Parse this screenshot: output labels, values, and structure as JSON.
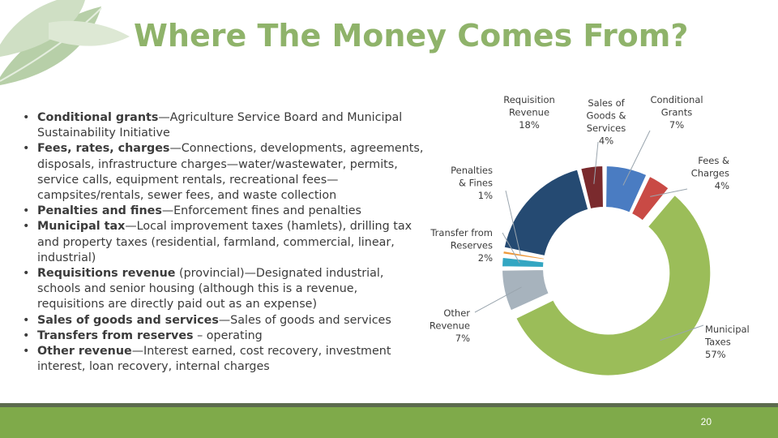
{
  "title": "Where The Money Comes From?",
  "bullets": [
    {
      "term": "Conditional grants",
      "sep": "—",
      "text": "Agriculture Service Board and Municipal Sustainability Initiative"
    },
    {
      "term": "Fees, rates, charges",
      "sep": "—",
      "text": "Connections, developments, agreements, disposals, infrastructure charges—water/wastewater, permits, service calls, equipment rentals, recreational fees—campsites/rentals, sewer fees, and waste collection"
    },
    {
      "term": "Penalties and fines",
      "sep": "—",
      "text": "Enforcement fines and penalties"
    },
    {
      "term": "Municipal tax",
      "sep": "—",
      "text": "Local improvement taxes (hamlets), drilling tax and property taxes (residential, farmland, commercial, linear, industrial)"
    },
    {
      "term": "Requisitions revenue",
      "sep": " ",
      "text": "(provincial)—Designated industrial, schools and senior housing (although this is a revenue, requisitions are directly paid out as an expense)"
    },
    {
      "term": "Sales of goods and services",
      "sep": "—",
      "text": "Sales of goods and services"
    },
    {
      "term": "Transfers from reserves",
      "sep": " – ",
      "text": "operating"
    },
    {
      "term": "Other revenue",
      "sep": "—",
      "text": "Interest earned, cost recovery, investment interest, loan recovery, internal charges"
    }
  ],
  "slide_number": "20",
  "colors": {
    "title": "#8fb36a",
    "footer": "#7faa4a",
    "divider": "#5c6b4e"
  },
  "chart_data": {
    "type": "pie",
    "variant": "donut",
    "start_angle_deg": 0,
    "direction": "clockwise",
    "slices": [
      {
        "label_lines": [
          "Conditional",
          "Grants"
        ],
        "pct_label": "7%",
        "value": 7,
        "color": "#4a7cc2"
      },
      {
        "label_lines": [
          "Fees &",
          "Charges"
        ],
        "pct_label": "4%",
        "value": 4,
        "color": "#c94a45"
      },
      {
        "label_lines": [
          "Municipal",
          "Taxes"
        ],
        "pct_label": "57%",
        "value": 57,
        "color": "#9bbd59"
      },
      {
        "label_lines": [
          "Other",
          "Revenue"
        ],
        "pct_label": "7%",
        "value": 7,
        "color": "#a7b3bd"
      },
      {
        "label_lines": [
          "Transfer from",
          "Reserves"
        ],
        "pct_label": "2%",
        "value": 2,
        "color": "#33a6c2"
      },
      {
        "label_lines": [
          "Penalties",
          "& Fines"
        ],
        "pct_label": "1%",
        "value": 1,
        "color": "#ef9a3c"
      },
      {
        "label_lines": [
          "Requisition",
          "Revenue"
        ],
        "pct_label": "18%",
        "value": 18,
        "color": "#254a72"
      },
      {
        "label_lines": [
          "Sales of",
          "Goods &",
          "Services"
        ],
        "pct_label": "4%",
        "value": 4,
        "color": "#7a2a2d"
      }
    ]
  }
}
